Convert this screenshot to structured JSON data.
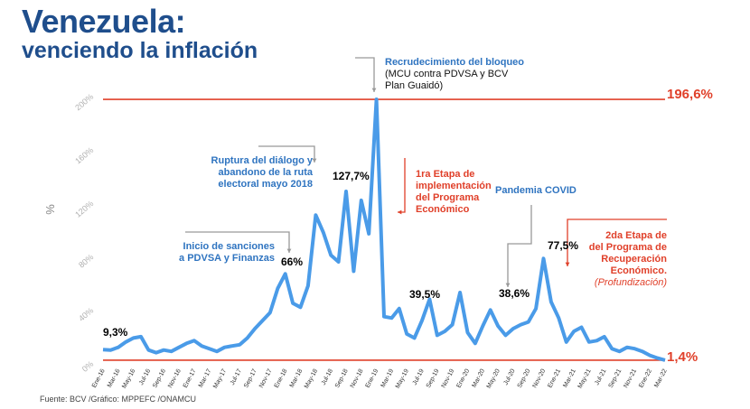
{
  "title": {
    "line1": "Venezuela:",
    "line2": "venciendo la inflación"
  },
  "source": "Fuente: BCV /Gráfico: MPPEFC /ONAMCU",
  "colors": {
    "line": "#4a9be8",
    "refline": "#e0402a",
    "title": "#1f4e8c",
    "blue_text": "#2f74c0",
    "red_text": "#e0402a"
  },
  "chart_data": {
    "type": "line",
    "ylabel": "%",
    "ylim": [
      0,
      200
    ],
    "yticks": [
      "0%",
      "40%",
      "80%",
      "120%",
      "160%",
      "200%"
    ],
    "ytick_values": [
      0,
      40,
      80,
      120,
      160,
      200
    ],
    "xtick_labels": [
      "Ene-16",
      "Mar-16",
      "May-16",
      "Jul-16",
      "Sep-16",
      "Nov-16",
      "Ene-17",
      "Mar-17",
      "May-17",
      "Jul-17",
      "Sep-17",
      "Nov-17",
      "Ene-18",
      "Mar-18",
      "May-18",
      "Jul-18",
      "Sep-18",
      "Nov-18",
      "Ene-19",
      "Mar-19",
      "May-19",
      "Jul-19",
      "Sep-19",
      "Nov-19",
      "Ene-20",
      "Mar-20",
      "May-20",
      "Jul-20",
      "Sep-20",
      "Nov-20",
      "Ene-21",
      "Mar-21",
      "May-21",
      "Jul-21",
      "Sep-21",
      "Nov-21",
      "Ene-22",
      "Mar-22"
    ],
    "x": [
      "Ene-16",
      "Feb-16",
      "Mar-16",
      "Abr-16",
      "May-16",
      "Jun-16",
      "Jul-16",
      "Ago-16",
      "Sep-16",
      "Oct-16",
      "Nov-16",
      "Dic-16",
      "Ene-17",
      "Feb-17",
      "Mar-17",
      "Abr-17",
      "May-17",
      "Jun-17",
      "Jul-17",
      "Ago-17",
      "Sep-17",
      "Oct-17",
      "Nov-17",
      "Dic-17",
      "Ene-18",
      "Feb-18",
      "Mar-18",
      "Abr-18",
      "May-18",
      "Jun-18",
      "Jul-18",
      "Ago-18",
      "Sep-18",
      "Oct-18",
      "Nov-18",
      "Dic-18",
      "Ene-19",
      "Feb-19",
      "Mar-19",
      "Abr-19",
      "May-19",
      "Jun-19",
      "Jul-19",
      "Ago-19",
      "Sep-19",
      "Oct-19",
      "Nov-19",
      "Dic-19",
      "Ene-20",
      "Feb-20",
      "Mar-20",
      "Abr-20",
      "May-20",
      "Jun-20",
      "Jul-20",
      "Ago-20",
      "Sep-20",
      "Oct-20",
      "Nov-20",
      "Dic-20",
      "Ene-21",
      "Feb-21",
      "Mar-21",
      "Abr-21",
      "May-21",
      "Jun-21",
      "Jul-21",
      "Ago-21",
      "Sep-21",
      "Oct-21",
      "Nov-21",
      "Dic-21",
      "Ene-22",
      "Feb-22",
      "Mar-22"
    ],
    "series": [
      {
        "values": [
          9.3,
          9,
          11,
          15,
          18,
          19,
          9,
          7,
          9,
          8,
          11,
          14,
          16,
          12,
          10,
          8,
          11,
          12,
          13,
          18,
          25,
          31,
          37,
          55,
          66,
          44,
          41,
          57,
          110,
          97,
          80,
          75,
          127.7,
          68,
          121,
          96,
          196.6,
          34,
          33,
          40,
          21,
          18,
          31,
          47,
          20,
          23,
          28,
          52,
          22,
          14,
          27,
          39,
          27,
          20,
          25,
          28,
          30,
          40,
          77.5,
          45,
          33,
          15,
          23,
          26,
          15,
          16,
          19,
          10,
          8,
          11,
          10,
          8,
          5,
          3,
          1.4
        ]
      }
    ],
    "reference_lines": [
      {
        "value": 196.6,
        "label": "196,6%"
      },
      {
        "value": 1.4,
        "label": "1,4%"
      }
    ],
    "value_labels": [
      "9,3%",
      "66%",
      "127,7%",
      "39,5%",
      "38,6%",
      "77,5%"
    ],
    "annotations": {
      "bloqueo": {
        "title": "Recrudecimiento del bloqueo",
        "line1": "(MCU contra PDVSA y BCV",
        "line2": "Plan Guaidó)"
      },
      "dialogo": {
        "line1": "Ruptura del diálogo y",
        "line2": "abandono de la ruta",
        "line3": "electoral mayo 2018"
      },
      "sanciones": {
        "line1": "Inicio de sanciones",
        "line2": "a PDVSA y Finanzas"
      },
      "etapa1": {
        "line1": "1ra Etapa de",
        "line2": "implementación",
        "line3": "del Programa",
        "line4": "Económico"
      },
      "covid": {
        "line1": "Pandemia COVID"
      },
      "etapa2": {
        "line1": "2da Etapa de",
        "line2": "del Programa de",
        "line3": "Recuperación",
        "line4": "Económico.",
        "line5": "(Profundización)"
      }
    },
    "grid": false
  }
}
